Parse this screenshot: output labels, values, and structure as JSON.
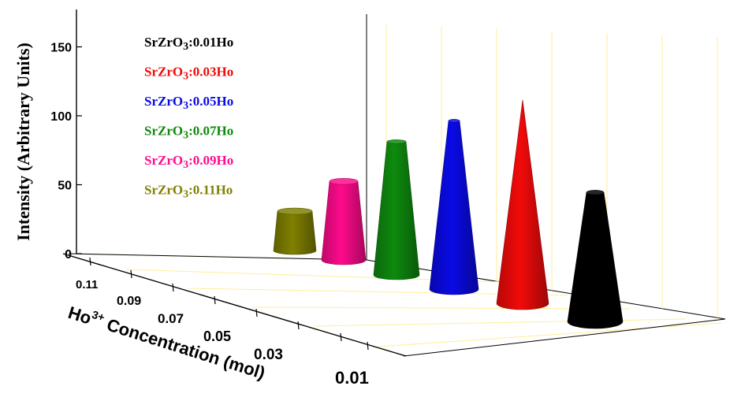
{
  "chart_data": {
    "type": "bar",
    "variant": "3d-cone",
    "categories": [
      "0.01",
      "0.03",
      "0.05",
      "0.07",
      "0.09",
      "0.11"
    ],
    "values": [
      92,
      145,
      120,
      95,
      56,
      28
    ],
    "ylabel": "Intensity (Arbitrary Units)",
    "xlabel_prefix": "Ho",
    "xlabel_sup": "3+",
    "xlabel_suffix": " Concentration (mol)",
    "yticks": [
      "0",
      "50",
      "100",
      "150"
    ],
    "ylim": [
      0,
      175
    ],
    "legend_placement": "top-left",
    "series": [
      {
        "name": "SrZrO3:0.11Ho",
        "category": "0.11",
        "value": 28,
        "color": "#808000"
      },
      {
        "name": "SrZrO3:0.09Ho",
        "category": "0.09",
        "value": 56,
        "color": "#ff0a8c"
      },
      {
        "name": "SrZrO3:0.07Ho",
        "category": "0.07",
        "value": 95,
        "color": "#0e8a0e"
      },
      {
        "name": "SrZrO3:0.05Ho",
        "category": "0.05",
        "value": 120,
        "color": "#0a0ae6"
      },
      {
        "name": "SrZrO3:0.03Ho",
        "category": "0.03",
        "value": 145,
        "color": "#f20a0a"
      },
      {
        "name": "SrZrO3:0.01Ho",
        "category": "0.01",
        "value": 92,
        "color": "#000000"
      }
    ],
    "legend": [
      {
        "prefix": "SrZrO",
        "sub": "3",
        "suffix": ":0.01Ho",
        "color": "#000000"
      },
      {
        "prefix": "SrZrO",
        "sub": "3",
        "suffix": ":0.03Ho",
        "color": "#f20a0a"
      },
      {
        "prefix": "SrZrO",
        "sub": "3",
        "suffix": ":0.05Ho",
        "color": "#0a0ae6"
      },
      {
        "prefix": "SrZrO",
        "sub": "3",
        "suffix": ":0.07Ho",
        "color": "#0e8a0e"
      },
      {
        "prefix": "SrZrO",
        "sub": "3",
        "suffix": ":0.09Ho",
        "color": "#ff0a8c"
      },
      {
        "prefix": "SrZrO",
        "sub": "3",
        "suffix": ":0.11Ho",
        "color": "#808000"
      }
    ],
    "grid_color": "#ffee99",
    "grid": true
  }
}
